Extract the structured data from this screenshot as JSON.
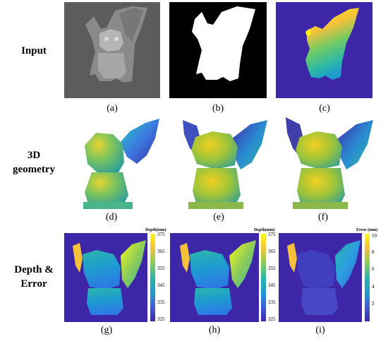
{
  "row_labels": {
    "input": "Input",
    "geometry": "3D geometry",
    "depth": "Depth & Error"
  },
  "captions": [
    "(a)",
    "(b)",
    "(c)",
    "(d)",
    "(e)",
    "(f)",
    "(g)",
    "(h)",
    "(i)"
  ],
  "colorbars": [
    {
      "title": "Depth(mm)",
      "ticks": [
        "375",
        "365",
        "355",
        "345",
        "335",
        "325"
      ]
    },
    {
      "title": "Depth(mm)",
      "ticks": [
        "375",
        "365",
        "355",
        "345",
        "335",
        "325"
      ]
    },
    {
      "title": "Error (mm)",
      "ticks": [
        "10",
        "8",
        "6",
        "4",
        "2"
      ]
    }
  ],
  "colors": {
    "bg_blue": "#3e26a8",
    "gray_bg": "#5c5c5c",
    "yellow": "#f9fb15",
    "teal": "#2ab7a9"
  }
}
